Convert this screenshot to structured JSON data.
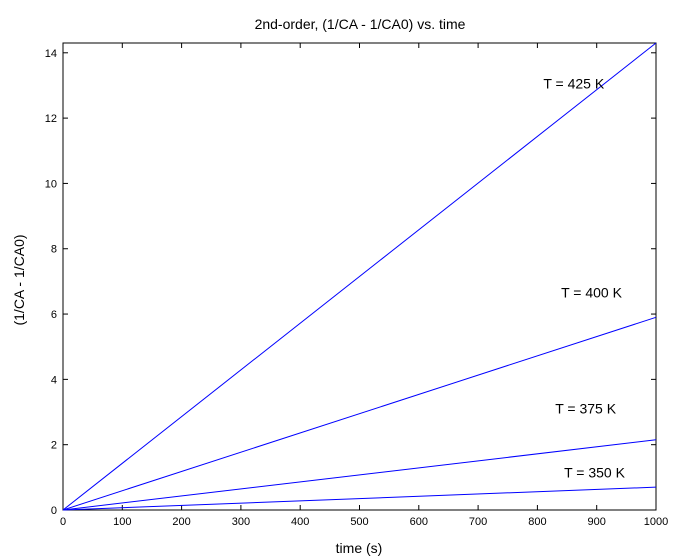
{
  "chart_data": {
    "type": "line",
    "title": "2nd-order, (1/CA - 1/CA0) vs. time",
    "xlabel": "time (s)",
    "ylabel": "(1/CA - 1/CA0)",
    "xlim": [
      0,
      1000
    ],
    "ylim": [
      0,
      14.3
    ],
    "xticks": [
      0,
      100,
      200,
      300,
      400,
      500,
      600,
      700,
      800,
      900,
      1000
    ],
    "yticks": [
      0,
      2,
      4,
      6,
      8,
      10,
      12,
      14
    ],
    "grid": false,
    "line_color": "#0000ff",
    "series": [
      {
        "x": [
          0,
          1000
        ],
        "y": [
          0,
          14.3
        ]
      },
      {
        "x": [
          0,
          1000
        ],
        "y": [
          0,
          5.9
        ]
      },
      {
        "x": [
          0,
          1000
        ],
        "y": [
          0,
          2.15
        ]
      },
      {
        "x": [
          0,
          1000
        ],
        "y": [
          0,
          0.7
        ]
      }
    ],
    "annotations": [
      {
        "text": "T = 425 K",
        "x": 810,
        "y": 12.9
      },
      {
        "text": "T = 400 K",
        "x": 840,
        "y": 6.5
      },
      {
        "text": "T = 375 K",
        "x": 830,
        "y": 2.95
      },
      {
        "text": "T = 350 K",
        "x": 845,
        "y": 1.0
      }
    ]
  }
}
